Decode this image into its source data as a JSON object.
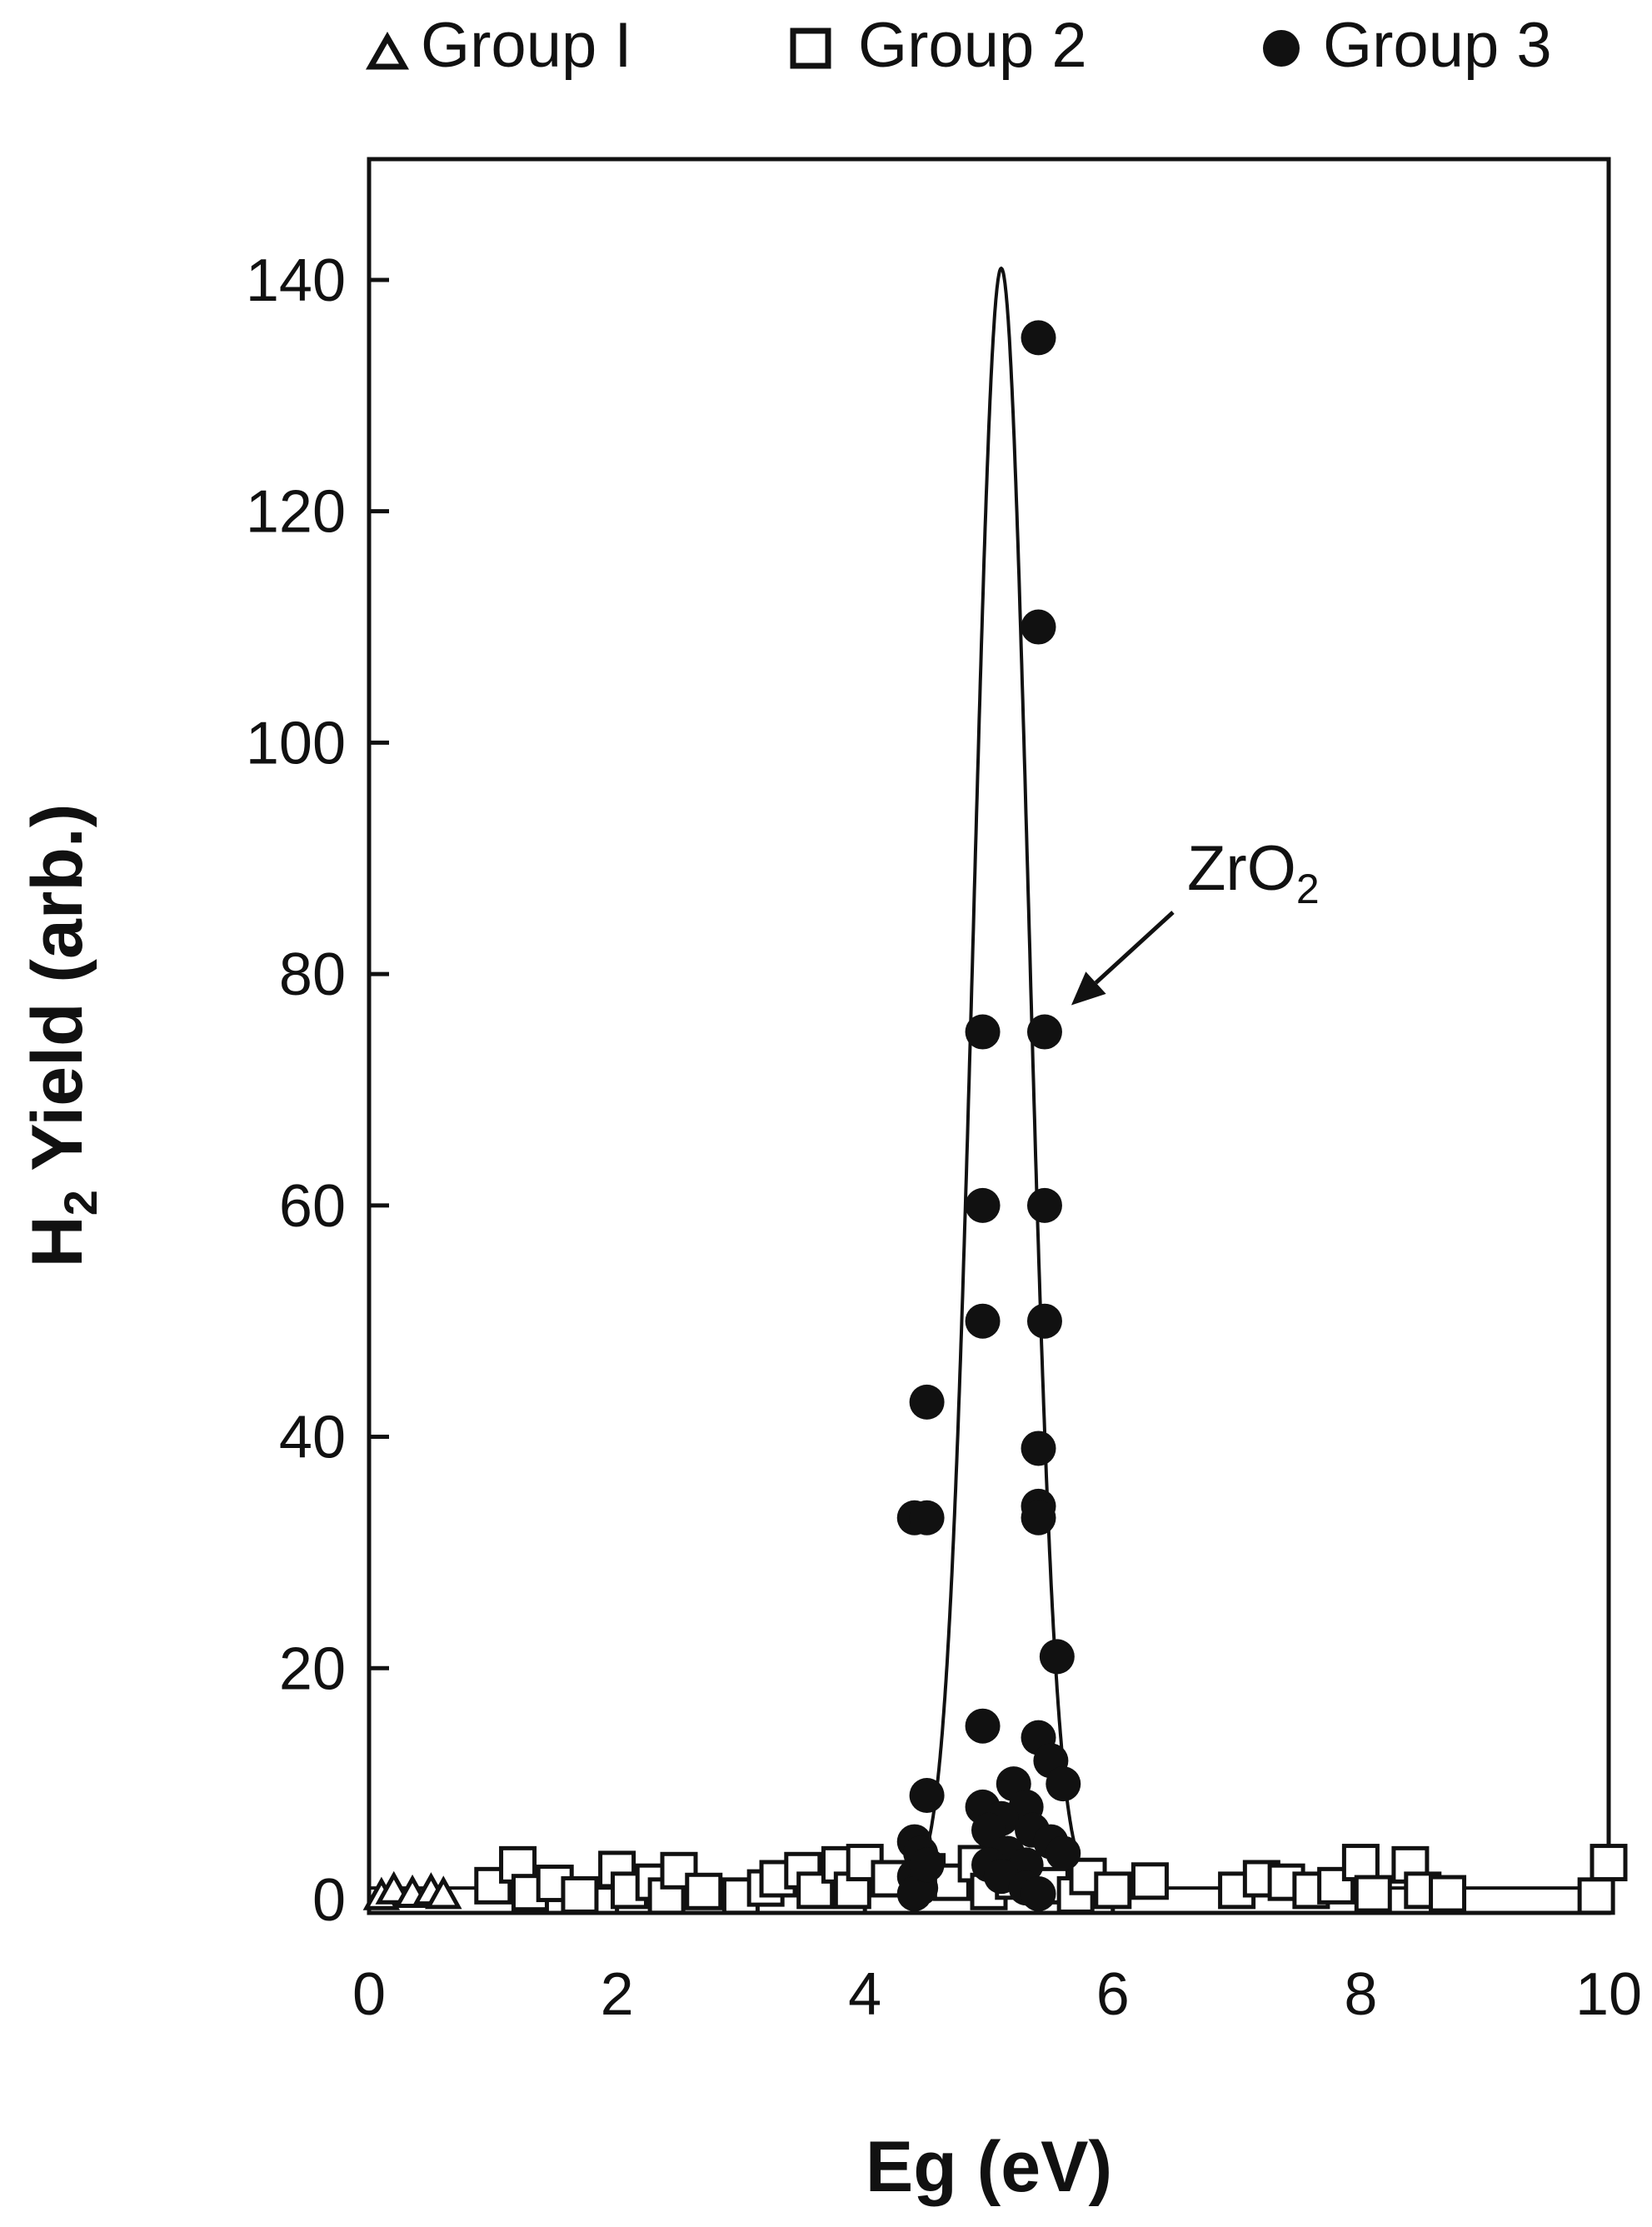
{
  "chart_data": {
    "type": "scatter",
    "xlabel": "Eg (eV)",
    "ylabel": {
      "prefix": "H",
      "sub": "2",
      "suffix": " Yield (arb.)"
    },
    "xlim": [
      0,
      10
    ],
    "ylim": [
      -5,
      150
    ],
    "x_ticks": [
      0,
      2,
      4,
      6,
      8,
      10
    ],
    "y_ticks": [
      0,
      20,
      40,
      60,
      80,
      100,
      120,
      140
    ],
    "grid": false,
    "legend": {
      "placement": "top",
      "entries": [
        "Group I",
        "Group 2",
        "Group 3"
      ]
    },
    "series": [
      {
        "name": "Group I",
        "marker": "triangle-open",
        "points": [
          [
            0.1,
            0.3
          ],
          [
            0.2,
            0.8
          ],
          [
            0.35,
            0.5
          ],
          [
            0.5,
            0.7
          ],
          [
            0.6,
            0.4
          ]
        ]
      },
      {
        "name": "Group 2",
        "marker": "square-open",
        "points": [
          [
            1.0,
            1.2
          ],
          [
            1.2,
            3.0
          ],
          [
            1.3,
            0.6
          ],
          [
            1.5,
            1.4
          ],
          [
            1.7,
            0.4
          ],
          [
            2.0,
            2.6
          ],
          [
            2.1,
            0.8
          ],
          [
            2.3,
            1.5
          ],
          [
            2.4,
            0.3
          ],
          [
            2.5,
            2.5
          ],
          [
            2.7,
            0.7
          ],
          [
            3.0,
            0.3
          ],
          [
            3.2,
            1.0
          ],
          [
            3.3,
            1.8
          ],
          [
            3.5,
            2.5
          ],
          [
            3.6,
            0.8
          ],
          [
            3.8,
            3.0
          ],
          [
            3.9,
            0.8
          ],
          [
            4.0,
            3.2
          ],
          [
            4.2,
            1.8
          ],
          [
            4.5,
            2.4
          ],
          [
            4.7,
            1.5
          ],
          [
            4.9,
            3.1
          ],
          [
            5.0,
            0.7
          ],
          [
            5.2,
            1.6
          ],
          [
            5.5,
            1.2
          ],
          [
            5.7,
            0.4
          ],
          [
            5.8,
            2.0
          ],
          [
            6.0,
            0.8
          ],
          [
            6.3,
            1.6
          ],
          [
            7.0,
            0.8
          ],
          [
            7.2,
            1.8
          ],
          [
            7.4,
            1.5
          ],
          [
            7.6,
            0.8
          ],
          [
            7.8,
            1.2
          ],
          [
            8.0,
            3.2
          ],
          [
            8.1,
            0.5
          ],
          [
            8.4,
            3.0
          ],
          [
            8.5,
            0.8
          ],
          [
            8.7,
            0.5
          ],
          [
            9.9,
            0.3
          ],
          [
            10.0,
            3.2
          ]
        ]
      },
      {
        "name": "Group 3",
        "marker": "circle-filled",
        "points": [
          [
            5.4,
            135
          ],
          [
            5.4,
            110
          ],
          [
            4.95,
            75
          ],
          [
            5.45,
            75
          ],
          [
            4.95,
            60
          ],
          [
            5.45,
            60
          ],
          [
            4.95,
            50
          ],
          [
            5.45,
            50
          ],
          [
            4.5,
            43
          ],
          [
            5.4,
            39
          ],
          [
            4.4,
            33
          ],
          [
            4.5,
            33
          ],
          [
            5.4,
            34
          ],
          [
            5.4,
            33
          ],
          [
            5.55,
            21
          ],
          [
            4.95,
            15
          ],
          [
            5.4,
            14
          ],
          [
            4.5,
            9
          ],
          [
            5.5,
            12
          ],
          [
            5.6,
            10
          ],
          [
            4.95,
            8
          ],
          [
            5.2,
            10
          ],
          [
            5.3,
            8
          ],
          [
            5.1,
            7
          ],
          [
            5.0,
            6
          ],
          [
            4.4,
            5
          ],
          [
            5.35,
            6
          ],
          [
            5.5,
            5
          ],
          [
            4.45,
            4
          ],
          [
            5.15,
            4
          ],
          [
            5.3,
            3
          ],
          [
            5.6,
            4
          ],
          [
            5.0,
            3
          ],
          [
            4.4,
            2
          ],
          [
            5.1,
            2
          ],
          [
            4.45,
            1
          ],
          [
            5.3,
            1
          ],
          [
            4.4,
            0.5
          ],
          [
            5.4,
            0.5
          ],
          [
            4.5,
            3
          ]
        ]
      }
    ],
    "fit_curve": {
      "type": "gaussian",
      "center": 5.1,
      "peak": 141,
      "sigma": 0.22,
      "baseline": 1.0
    },
    "baseline_line": {
      "y": 1.0
    },
    "annotations": [
      {
        "text": {
          "prefix": "ZrO",
          "sub": "2"
        },
        "arrow_to": [
          5.45,
          75
        ],
        "text_at": [
          6.6,
          95
        ]
      }
    ]
  }
}
